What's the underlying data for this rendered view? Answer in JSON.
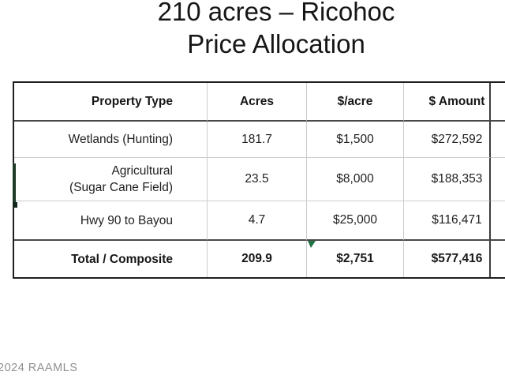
{
  "title": {
    "line1": "210 acres – Ricohoc",
    "line2": "Price Allocation"
  },
  "table": {
    "columns": [
      "Property Type",
      "Acres",
      "$/acre",
      "$ Amount"
    ],
    "rows": [
      {
        "name": "Wetlands (Hunting)",
        "name2": "",
        "acres": "181.7",
        "rate": "$1,500",
        "amount": "$272,592"
      },
      {
        "name": "Agricultural",
        "name2": "(Sugar Cane Field)",
        "acres": "23.5",
        "rate": "$8,000",
        "amount": "$188,353"
      },
      {
        "name": "Hwy 90 to Bayou",
        "name2": "",
        "acres": "4.7",
        "rate": "$25,000",
        "amount": "$116,471"
      }
    ],
    "total": {
      "name": "Total / Composite",
      "acres": "209.9",
      "rate": "$2,751",
      "amount": "$577,416"
    }
  },
  "footer": {
    "watermark": "2024 RAAMLS"
  },
  "colors": {
    "excel_green": "#217346",
    "grid_light": "#cccccc",
    "grid_dark": "#4a4a4a",
    "outer_border": "#1f1f1f",
    "watermark_gray": "#909090"
  }
}
